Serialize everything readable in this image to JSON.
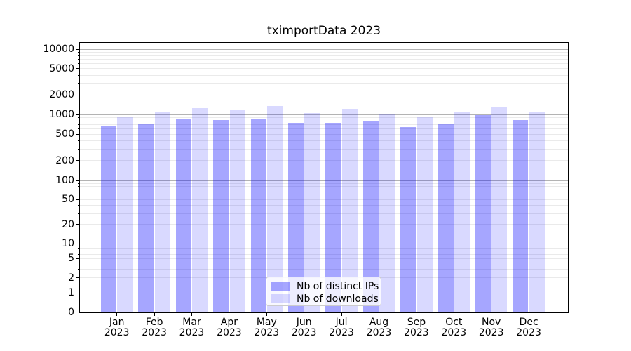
{
  "chart_data": {
    "type": "bar",
    "title": "tximportData 2023",
    "yscale": "symlog",
    "ylim": [
      0,
      12500
    ],
    "grid": true,
    "legend_position": "lower center",
    "categories": [
      "Jan 2023",
      "Feb 2023",
      "Mar 2023",
      "Apr 2023",
      "May 2023",
      "Jun 2023",
      "Jul 2023",
      "Aug 2023",
      "Sep 2023",
      "Oct 2023",
      "Nov 2023",
      "Dec 2023"
    ],
    "series": [
      {
        "name": "Nb of distinct IPs",
        "color": "#0000ff",
        "alpha": 0.35,
        "values": [
          670,
          730,
          860,
          830,
          870,
          740,
          750,
          800,
          650,
          730,
          975,
          830
        ]
      },
      {
        "name": "Nb of downloads",
        "color": "#0000ff",
        "alpha": 0.15,
        "values": [
          930,
          1080,
          1250,
          1190,
          1340,
          1060,
          1220,
          1030,
          910,
          1090,
          1290,
          1110
        ]
      }
    ],
    "yticks": [
      0,
      1,
      2,
      5,
      10,
      20,
      50,
      100,
      200,
      500,
      1000,
      2000,
      5000,
      10000
    ],
    "colors": {
      "grid_major": "#b3b3b3",
      "grid_minor": "#eaeaea",
      "axis": "#000000",
      "text": "#000000",
      "legend_border": "#cccccc"
    }
  }
}
